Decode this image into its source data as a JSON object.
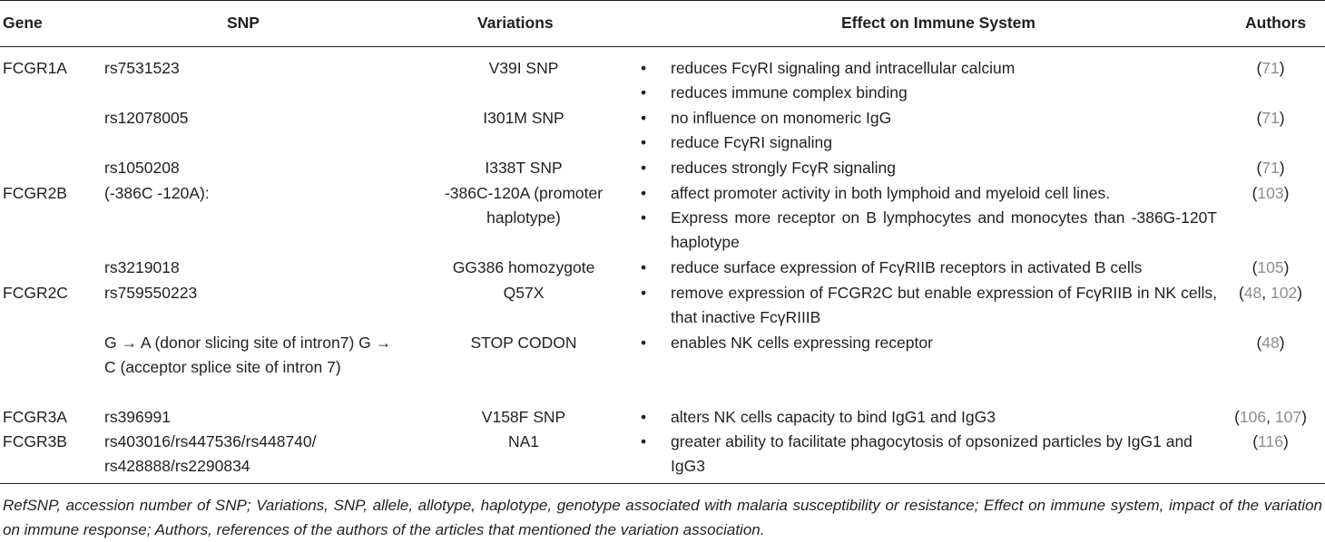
{
  "headers": {
    "gene": "Gene",
    "snp": "SNP",
    "variations": "Variations",
    "effect": "Effect on Immune System",
    "authors": "Authors"
  },
  "bullet": "•",
  "rows": [
    {
      "gene": "FCGR1A",
      "snp": "rs7531523",
      "variation": "V39I SNP",
      "effects": [
        "reduces FcγRI signaling and intracellular calcium",
        "reduces immune complex binding"
      ],
      "authors": {
        "open": "(",
        "refs": [
          "71"
        ],
        "close": ")"
      }
    },
    {
      "gene": "",
      "snp": "rs12078005",
      "variation": "I301M SNP",
      "effects": [
        "no influence on monomeric IgG",
        "reduce FcγRI signaling"
      ],
      "authors": {
        "open": "(",
        "refs": [
          "71"
        ],
        "close": ")"
      }
    },
    {
      "gene": "",
      "snp": "rs1050208",
      "variation": "I338T SNP",
      "effects": [
        "reduces strongly FcγR signaling"
      ],
      "authors": {
        "open": "(",
        "refs": [
          "71"
        ],
        "close": ")"
      }
    },
    {
      "gene": "FCGR2B",
      "snp": "(-386C -120A):",
      "variation": "-386C-120A (promoter haplotype)",
      "effects": [
        "affect promoter activity in both lymphoid and myeloid cell lines.",
        "Express more receptor on B lymphocytes and monocytes than -386G-120T haplotype"
      ],
      "authors": {
        "open": "(",
        "refs": [
          "103"
        ],
        "close": ")"
      }
    },
    {
      "gene": "",
      "snp": "rs3219018",
      "variation": "GG386 homozygote",
      "effects": [
        "reduce surface expression of FcγRIIB receptors in activated B cells"
      ],
      "authors": {
        "open": "(",
        "refs": [
          "105"
        ],
        "close": ")"
      }
    },
    {
      "gene": "FCGR2C",
      "snp": "rs759550223",
      "variation": "Q57X",
      "effects": [
        "remove expression of FCGR2C but enable expression of FcγRIIB in NK cells, that inactive FcγRIIIB"
      ],
      "authors": {
        "open": "(",
        "refs": [
          "48",
          "102"
        ],
        "close": ")"
      }
    },
    {
      "gene": "",
      "snp": "G → A (donor slicing site of intron7) G → C (acceptor splice site of intron 7)",
      "variation": "STOP CODON",
      "effects": [
        "enables NK cells expressing receptor"
      ],
      "authors": {
        "open": "(",
        "refs": [
          "48"
        ],
        "close": ")"
      }
    },
    {
      "gene": "FCGR3A",
      "snp": "rs396991",
      "variation": "V158F SNP",
      "effects": [
        "alters NK cells capacity to bind IgG1 and IgG3"
      ],
      "authors": {
        "open": "(",
        "refs": [
          "106",
          "107"
        ],
        "close": ")"
      }
    },
    {
      "gene": "FCGR3B",
      "snp": "rs403016/rs447536/rs448740/ rs428888/rs2290834",
      "variation": "NA1",
      "effects": [
        "greater ability to facilitate phagocytosis of opsonized particles by IgG1 and IgG3"
      ],
      "authors": {
        "open": "(",
        "refs": [
          "116"
        ],
        "close": ")"
      }
    }
  ],
  "footnote": "RefSNP, accession number of SNP; Variations, SNP, allele, allotype, haplotype, genotype associated with malaria susceptibility or resistance; Effect on immune system, impact of the variation on immune response; Authors, references of the authors of the articles that mentioned the variation association."
}
